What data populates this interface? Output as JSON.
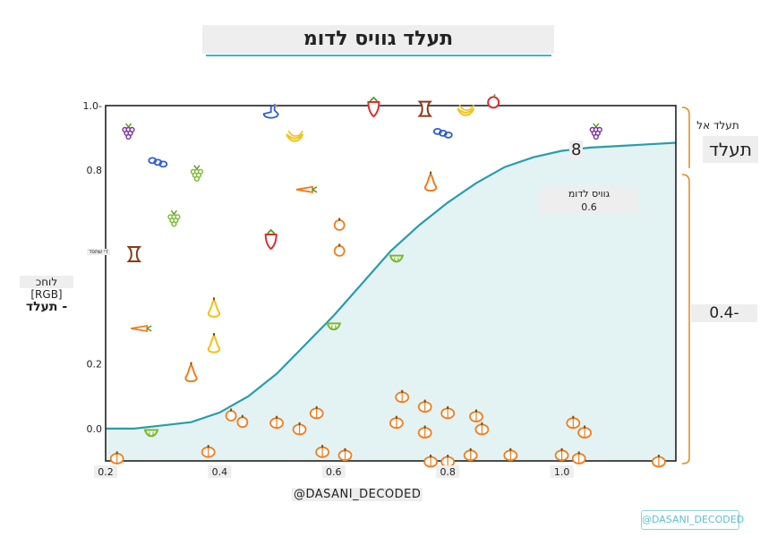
{
  "title": "תעלד גוויס לדומ",
  "y_axis_label": {
    "line1": "לוחכ",
    "line2": "[RGB]",
    "line3": "תעלד -"
  },
  "x_axis_label": "@DASANI_DECODED",
  "legend": {
    "top_small": "תעלד אל",
    "top_big": "תעלד",
    "bottom": "0.4-"
  },
  "curve_label": {
    "name": "גוויס לדומ",
    "value": "0.6"
  },
  "watermark": "@DASANI_DECODED",
  "stray_text": "8",
  "tiny_label": "די שתפד",
  "colors": {
    "curve": "#2a9da9",
    "fill": "#e3f3f4",
    "orange": "#f07d1e",
    "red": "#d7302f",
    "green": "#77b82a",
    "purple": "#7a2f9e",
    "blue": "#2d5fd0",
    "yellow": "#f2c21a",
    "brown": "#8a3b16",
    "axis_bracket": "#e38a1a"
  },
  "chart_data": {
    "type": "scatter",
    "title": "תעלד גוויס לדומ",
    "xlim": [
      0.2,
      1.2
    ],
    "ylim": [
      -0.1,
      1.0
    ],
    "x_ticks": [
      "0.2",
      "0.4",
      "0.6",
      "0.8",
      "1.0",
      ""
    ],
    "y_ticks": [
      "0.0",
      "0.2",
      "0.8",
      "1.0-"
    ],
    "grid": false,
    "sigmoid_curve": {
      "x": [
        0.2,
        0.25,
        0.3,
        0.35,
        0.4,
        0.45,
        0.5,
        0.55,
        0.6,
        0.65,
        0.7,
        0.75,
        0.8,
        0.85,
        0.9,
        0.95,
        1.0,
        1.05,
        1.1,
        1.15,
        1.2
      ],
      "y": [
        0.0,
        0.0,
        0.01,
        0.02,
        0.05,
        0.1,
        0.17,
        0.26,
        0.35,
        0.45,
        0.55,
        0.63,
        0.7,
        0.76,
        0.81,
        0.84,
        0.86,
        0.87,
        0.875,
        0.88,
        0.885
      ]
    },
    "points": [
      {
        "x": 0.24,
        "y": 0.92,
        "icon": "grapes",
        "color": "purple"
      },
      {
        "x": 0.29,
        "y": 0.83,
        "icon": "chain",
        "color": "blue"
      },
      {
        "x": 0.36,
        "y": 0.79,
        "icon": "grapes",
        "color": "green"
      },
      {
        "x": 0.32,
        "y": 0.65,
        "icon": "grapes",
        "color": "green"
      },
      {
        "x": 0.25,
        "y": 0.54,
        "icon": "apple-core",
        "color": "brown"
      },
      {
        "x": 0.39,
        "y": 0.37,
        "icon": "pear",
        "color": "yellow"
      },
      {
        "x": 0.26,
        "y": 0.31,
        "icon": "carrot",
        "color": "orange"
      },
      {
        "x": 0.39,
        "y": 0.26,
        "icon": "pear",
        "color": "yellow"
      },
      {
        "x": 0.35,
        "y": 0.17,
        "icon": "pear",
        "color": "orange"
      },
      {
        "x": 0.42,
        "y": 0.04,
        "icon": "orange",
        "color": "orange"
      },
      {
        "x": 0.44,
        "y": 0.02,
        "icon": "orange",
        "color": "orange"
      },
      {
        "x": 0.49,
        "y": 0.98,
        "icon": "duck",
        "color": "blue"
      },
      {
        "x": 0.53,
        "y": 0.9,
        "icon": "banana",
        "color": "yellow"
      },
      {
        "x": 0.55,
        "y": 0.74,
        "icon": "carrot",
        "color": "orange"
      },
      {
        "x": 0.49,
        "y": 0.59,
        "icon": "strawberry",
        "color": "red"
      },
      {
        "x": 0.61,
        "y": 0.63,
        "icon": "orange",
        "color": "orange"
      },
      {
        "x": 0.61,
        "y": 0.55,
        "icon": "orange",
        "color": "orange"
      },
      {
        "x": 0.67,
        "y": 1.0,
        "icon": "strawberry",
        "color": "red"
      },
      {
        "x": 0.71,
        "y": 0.53,
        "icon": "melon",
        "color": "green"
      },
      {
        "x": 0.76,
        "y": 0.99,
        "icon": "apple-core",
        "color": "brown"
      },
      {
        "x": 0.77,
        "y": 0.76,
        "icon": "pear",
        "color": "orange"
      },
      {
        "x": 0.79,
        "y": 0.92,
        "icon": "chain",
        "color": "blue"
      },
      {
        "x": 0.83,
        "y": 0.98,
        "icon": "banana",
        "color": "yellow"
      },
      {
        "x": 0.88,
        "y": 1.01,
        "icon": "apple",
        "color": "red"
      },
      {
        "x": 0.6,
        "y": 0.32,
        "icon": "melon",
        "color": "green"
      },
      {
        "x": 1.06,
        "y": 0.92,
        "icon": "grape-cone",
        "color": "purple"
      },
      {
        "x": 0.72,
        "y": 0.1,
        "icon": "pumpkin",
        "color": "orange"
      },
      {
        "x": 0.76,
        "y": 0.07,
        "icon": "pumpkin",
        "color": "orange"
      },
      {
        "x": 0.57,
        "y": 0.05,
        "icon": "pumpkin",
        "color": "orange"
      },
      {
        "x": 0.5,
        "y": 0.02,
        "icon": "pumpkin",
        "color": "orange"
      },
      {
        "x": 0.54,
        "y": 0.0,
        "icon": "pumpkin",
        "color": "orange"
      },
      {
        "x": 0.71,
        "y": 0.02,
        "icon": "pumpkin",
        "color": "orange"
      },
      {
        "x": 0.76,
        "y": -0.01,
        "icon": "pumpkin",
        "color": "orange"
      },
      {
        "x": 0.8,
        "y": 0.05,
        "icon": "pumpkin",
        "color": "orange"
      },
      {
        "x": 0.85,
        "y": 0.04,
        "icon": "pumpkin",
        "color": "orange"
      },
      {
        "x": 0.86,
        "y": 0.0,
        "icon": "pumpkin",
        "color": "orange"
      },
      {
        "x": 1.02,
        "y": 0.02,
        "icon": "pumpkin",
        "color": "orange"
      },
      {
        "x": 1.04,
        "y": -0.01,
        "icon": "pumpkin",
        "color": "orange"
      },
      {
        "x": 0.28,
        "y": -0.01,
        "icon": "melon",
        "color": "green"
      },
      {
        "x": 0.22,
        "y": -0.09,
        "icon": "pumpkin",
        "color": "orange"
      },
      {
        "x": 0.38,
        "y": -0.07,
        "icon": "pumpkin",
        "color": "orange"
      },
      {
        "x": 0.58,
        "y": -0.07,
        "icon": "pumpkin",
        "color": "orange"
      },
      {
        "x": 0.62,
        "y": -0.08,
        "icon": "pumpkin",
        "color": "orange"
      },
      {
        "x": 0.77,
        "y": -0.1,
        "icon": "pumpkin",
        "color": "orange"
      },
      {
        "x": 0.8,
        "y": -0.1,
        "icon": "pumpkin",
        "color": "orange"
      },
      {
        "x": 0.84,
        "y": -0.08,
        "icon": "pumpkin",
        "color": "orange"
      },
      {
        "x": 0.91,
        "y": -0.08,
        "icon": "pumpkin",
        "color": "orange"
      },
      {
        "x": 1.0,
        "y": -0.08,
        "icon": "pumpkin",
        "color": "orange"
      },
      {
        "x": 1.03,
        "y": -0.09,
        "icon": "pumpkin",
        "color": "orange"
      },
      {
        "x": 1.17,
        "y": -0.1,
        "icon": "pumpkin",
        "color": "orange"
      }
    ]
  }
}
